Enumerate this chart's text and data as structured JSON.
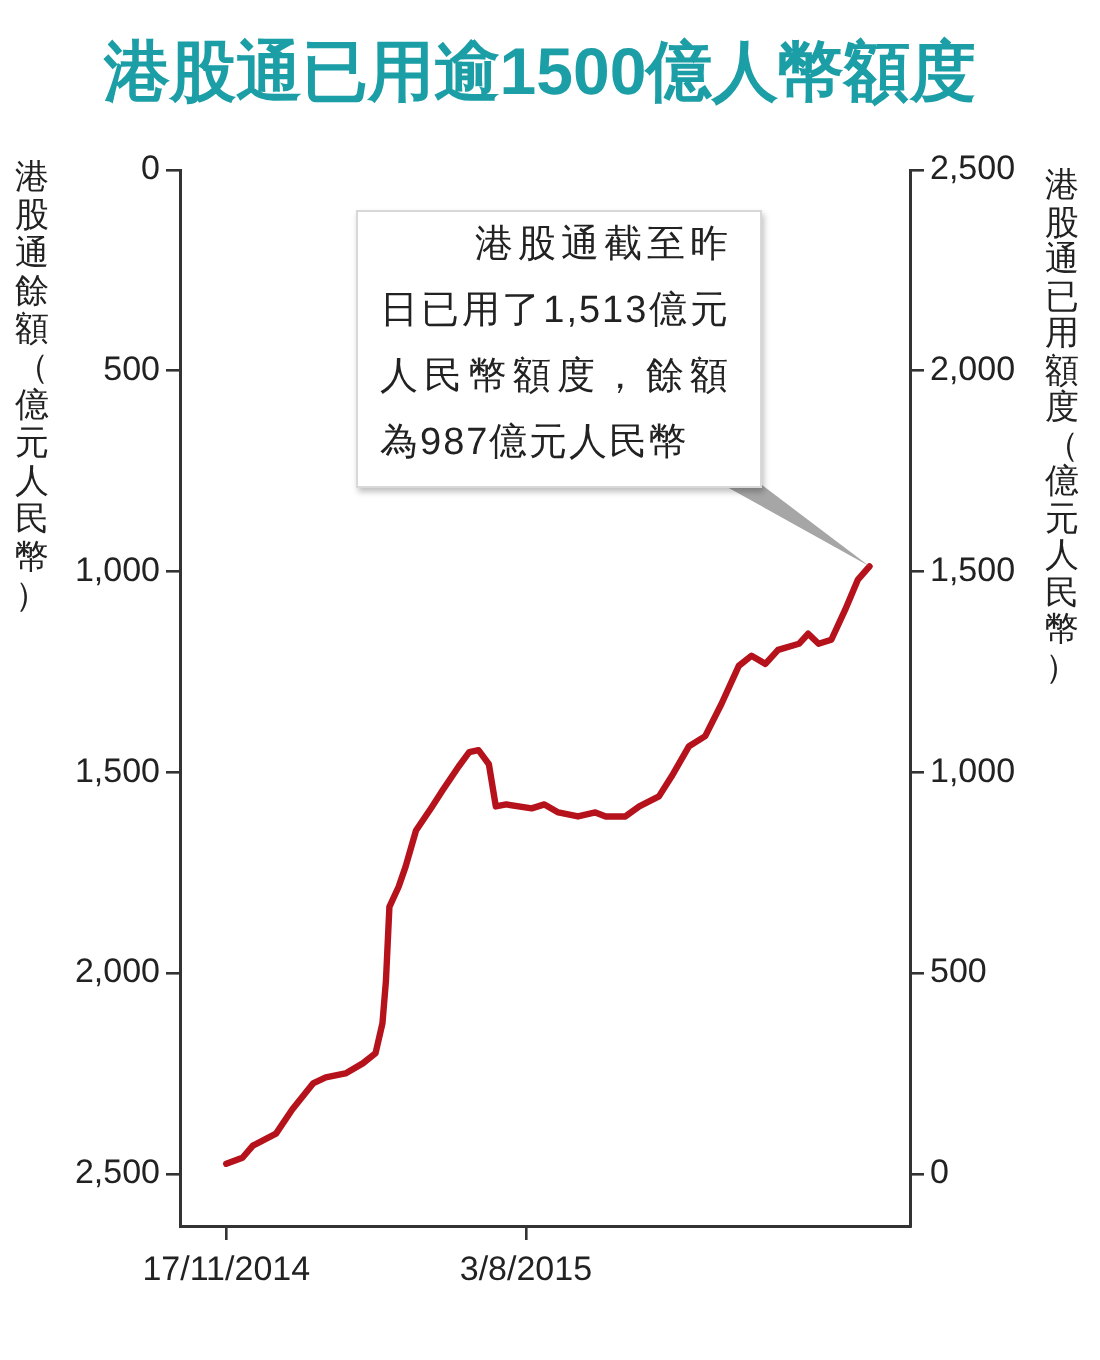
{
  "chart_data": {
    "type": "line",
    "title": "港股通已用逾1500億人幣額度",
    "ylabel": "港股通餘額（億元人民幣）",
    "y2label": "港股通已用額度（億元人民幣）",
    "x": [
      "2014-11-17",
      "2014-12-01",
      "2014-12-10",
      "2014-12-30",
      "2015-01-13",
      "2015-01-31",
      "2015-02-11",
      "2015-02-28",
      "2015-03-15",
      "2015-03-26",
      "2015-04-01",
      "2015-04-04",
      "2015-04-07",
      "2015-04-15",
      "2015-04-21",
      "2015-04-30",
      "2015-05-14",
      "2015-05-23",
      "2015-06-06",
      "2015-06-15",
      "2015-06-23",
      "2015-07-02",
      "2015-07-08",
      "2015-07-17",
      "2015-08-08",
      "2015-08-19",
      "2015-08-31",
      "2015-09-17",
      "2015-10-02",
      "2015-10-11",
      "2015-10-28",
      "2015-11-09",
      "2015-11-26",
      "2015-12-07",
      "2015-12-22",
      "2016-01-05",
      "2016-01-19",
      "2016-02-03",
      "2016-02-14",
      "2016-02-26",
      "2016-03-08",
      "2016-03-26",
      "2016-04-03",
      "2016-04-12",
      "2016-04-23",
      "2016-05-05",
      "2016-05-16",
      "2016-05-26"
    ],
    "series": [
      {
        "color": "#b5121b",
        "values": [
          2475,
          2460,
          2430,
          2400,
          2340,
          2275,
          2260,
          2250,
          2225,
          2200,
          2125,
          2020,
          1835,
          1785,
          1735,
          1645,
          1585,
          1545,
          1485,
          1450,
          1445,
          1480,
          1585,
          1580,
          1590,
          1580,
          1600,
          1610,
          1600,
          1610,
          1610,
          1585,
          1560,
          1510,
          1435,
          1410,
          1330,
          1235,
          1210,
          1230,
          1195,
          1180,
          1155,
          1180,
          1170,
          1095,
          1020,
          987
        ]
      }
    ],
    "xlim": [
      "2014-10-08",
      "2016-06-30"
    ],
    "xticks": [
      {
        "value": "2014-11-17",
        "label": "17/11/2014"
      },
      {
        "value": "2015-08-03",
        "label": "3/8/2015"
      }
    ],
    "ylim": [
      2630,
      0
    ],
    "yticks": [
      0,
      500,
      {
        "value": 1000,
        "label": "1,000"
      },
      {
        "value": 1500,
        "label": "1,500"
      },
      {
        "value": 2000,
        "label": "2,000"
      },
      {
        "value": 2500,
        "label": "2,500"
      }
    ],
    "y2lim": [
      -130,
      2500
    ],
    "y2ticks": [
      0,
      500,
      {
        "value": 1000,
        "label": "1,000"
      },
      {
        "value": 1500,
        "label": "1,500"
      },
      {
        "value": 2000,
        "label": "2,000"
      },
      {
        "value": 2500,
        "label": "2,500"
      }
    ],
    "annotations": [
      "港股通截至昨日已用了1,513億元人民幣額度，餘額為987億元人民幣"
    ],
    "marker": "none",
    "line_style": "solid"
  }
}
